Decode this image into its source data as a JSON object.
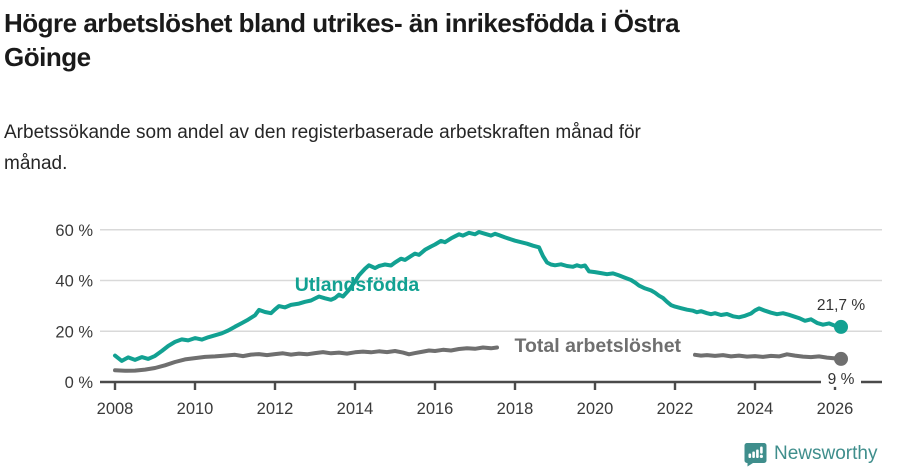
{
  "header": {
    "title_lines": [
      "Högre arbetslöshet bland utrikes- än inrikesfödda i Östra",
      "Göinge"
    ],
    "subtitle_lines": [
      "Arbetssökande som andel av den registerbaserade arbetskraften månad för",
      "månad."
    ]
  },
  "footer": {
    "brand": "Newsworthy",
    "brand_color": "#3f8e8c",
    "logo_icon": "newsworthy-speech-bubble-bar-chart-icon"
  },
  "chart_data": {
    "type": "line",
    "unit": "%",
    "grid": "horizontal",
    "x_axis": {
      "ticks": [
        2008,
        2010,
        2012,
        2014,
        2016,
        2018,
        2020,
        2022,
        2024,
        2026
      ],
      "tick_labels": [
        "2008",
        "2010",
        "2012",
        "2014",
        "2016",
        "2018",
        "2020",
        "2022",
        "2024",
        "2026"
      ],
      "range": [
        2007.6,
        2027.2
      ]
    },
    "y_axis": {
      "ticks": [
        0,
        20,
        40,
        60
      ],
      "tick_labels": [
        "0 %",
        "20 %",
        "40 %",
        "60 %"
      ],
      "range": [
        0,
        64
      ]
    },
    "series": [
      {
        "name": "Utlandsfödda",
        "color": "#12a192",
        "end_label": "21,7 %",
        "end_label_value": 21.7,
        "label_anchor": [
          2014.05,
          35.9
        ],
        "segments": [
          [
            [
              2008.0,
              10.4
            ],
            [
              2008.17,
              8.3
            ],
            [
              2008.33,
              9.7
            ],
            [
              2008.5,
              8.7
            ],
            [
              2008.67,
              9.8
            ],
            [
              2008.83,
              9.1
            ],
            [
              2009.0,
              10.3
            ],
            [
              2009.17,
              12.2
            ],
            [
              2009.33,
              14.2
            ],
            [
              2009.5,
              15.8
            ],
            [
              2009.67,
              16.8
            ],
            [
              2009.83,
              16.4
            ],
            [
              2010.0,
              17.3
            ],
            [
              2010.17,
              16.7
            ],
            [
              2010.33,
              17.6
            ],
            [
              2010.5,
              18.4
            ],
            [
              2010.67,
              19.2
            ],
            [
              2010.83,
              20.3
            ],
            [
              2011.0,
              21.8
            ],
            [
              2011.17,
              23.2
            ],
            [
              2011.33,
              24.6
            ],
            [
              2011.5,
              26.3
            ],
            [
              2011.6,
              28.4
            ],
            [
              2011.75,
              27.6
            ],
            [
              2011.9,
              27.1
            ],
            [
              2012.0,
              28.6
            ],
            [
              2012.1,
              29.9
            ],
            [
              2012.25,
              29.4
            ],
            [
              2012.4,
              30.4
            ],
            [
              2012.6,
              30.9
            ],
            [
              2012.75,
              31.6
            ],
            [
              2012.9,
              32.1
            ],
            [
              2013.1,
              33.7
            ],
            [
              2013.25,
              33.0
            ],
            [
              2013.4,
              32.4
            ],
            [
              2013.5,
              33.1
            ],
            [
              2013.6,
              34.4
            ],
            [
              2013.7,
              33.7
            ],
            [
              2013.85,
              36.3
            ],
            [
              2014.0,
              39.6
            ],
            [
              2014.1,
              42.1
            ],
            [
              2014.25,
              44.6
            ],
            [
              2014.35,
              46.0
            ],
            [
              2014.5,
              44.9
            ],
            [
              2014.6,
              45.7
            ],
            [
              2014.75,
              46.3
            ],
            [
              2014.9,
              45.9
            ],
            [
              2015.0,
              47.1
            ],
            [
              2015.15,
              48.6
            ],
            [
              2015.25,
              48.1
            ],
            [
              2015.4,
              49.6
            ],
            [
              2015.5,
              50.6
            ],
            [
              2015.6,
              50.1
            ],
            [
              2015.75,
              52.1
            ],
            [
              2015.9,
              53.4
            ],
            [
              2016.0,
              54.2
            ],
            [
              2016.15,
              55.6
            ],
            [
              2016.25,
              55.1
            ],
            [
              2016.4,
              56.6
            ],
            [
              2016.5,
              57.4
            ],
            [
              2016.6,
              58.2
            ],
            [
              2016.7,
              57.7
            ],
            [
              2016.85,
              58.8
            ],
            [
              2017.0,
              58.2
            ],
            [
              2017.1,
              59.1
            ],
            [
              2017.25,
              58.4
            ],
            [
              2017.4,
              57.7
            ],
            [
              2017.5,
              58.4
            ],
            [
              2017.6,
              57.9
            ],
            [
              2017.75,
              57.0
            ],
            [
              2017.9,
              56.2
            ],
            [
              2018.0,
              55.7
            ],
            [
              2018.15,
              55.1
            ],
            [
              2018.3,
              54.5
            ],
            [
              2018.45,
              53.7
            ],
            [
              2018.6,
              53.1
            ],
            [
              2018.7,
              49.6
            ],
            [
              2018.8,
              47.1
            ],
            [
              2018.9,
              46.3
            ],
            [
              2019.0,
              46.0
            ],
            [
              2019.15,
              46.4
            ],
            [
              2019.3,
              45.7
            ],
            [
              2019.45,
              45.4
            ],
            [
              2019.55,
              46.0
            ],
            [
              2019.65,
              45.5
            ],
            [
              2019.75,
              45.9
            ],
            [
              2019.85,
              43.6
            ],
            [
              2020.0,
              43.3
            ],
            [
              2020.15,
              42.9
            ],
            [
              2020.3,
              42.5
            ],
            [
              2020.45,
              42.8
            ],
            [
              2020.6,
              42.0
            ],
            [
              2020.75,
              41.1
            ],
            [
              2020.9,
              40.2
            ],
            [
              2021.0,
              39.2
            ],
            [
              2021.1,
              38.0
            ],
            [
              2021.25,
              36.9
            ],
            [
              2021.4,
              36.1
            ],
            [
              2021.5,
              35.2
            ],
            [
              2021.6,
              34.0
            ],
            [
              2021.7,
              33.1
            ],
            [
              2021.8,
              31.6
            ],
            [
              2021.9,
              30.3
            ],
            [
              2022.0,
              29.7
            ],
            [
              2022.15,
              29.1
            ],
            [
              2022.3,
              28.5
            ],
            [
              2022.45,
              28.1
            ],
            [
              2022.55,
              27.5
            ],
            [
              2022.65,
              27.9
            ],
            [
              2022.8,
              27.1
            ],
            [
              2022.9,
              26.7
            ],
            [
              2023.0,
              27.1
            ],
            [
              2023.15,
              26.4
            ],
            [
              2023.3,
              26.8
            ],
            [
              2023.45,
              25.9
            ],
            [
              2023.6,
              25.5
            ],
            [
              2023.75,
              26.1
            ],
            [
              2023.9,
              27.0
            ],
            [
              2024.0,
              28.2
            ],
            [
              2024.1,
              29.0
            ],
            [
              2024.25,
              28.1
            ],
            [
              2024.4,
              27.3
            ],
            [
              2024.55,
              26.7
            ],
            [
              2024.7,
              27.1
            ],
            [
              2024.85,
              26.5
            ],
            [
              2025.0,
              25.7
            ],
            [
              2025.1,
              25.2
            ],
            [
              2025.25,
              24.1
            ],
            [
              2025.4,
              24.7
            ],
            [
              2025.55,
              23.3
            ],
            [
              2025.7,
              22.6
            ],
            [
              2025.85,
              23.1
            ],
            [
              2026.0,
              22.2
            ],
            [
              2026.15,
              21.7
            ]
          ]
        ]
      },
      {
        "name": "Total arbetslöshet",
        "color": "#6f6f6f",
        "end_label": "9 %",
        "end_label_value": 9.0,
        "label_anchor": [
          2020.07,
          11.8
        ],
        "segments": [
          [
            [
              2008.0,
              4.6
            ],
            [
              2008.25,
              4.4
            ],
            [
              2008.5,
              4.5
            ],
            [
              2008.75,
              4.9
            ],
            [
              2009.0,
              5.5
            ],
            [
              2009.25,
              6.6
            ],
            [
              2009.5,
              7.9
            ],
            [
              2009.75,
              8.9
            ],
            [
              2010.0,
              9.4
            ],
            [
              2010.25,
              9.9
            ],
            [
              2010.5,
              10.1
            ],
            [
              2010.75,
              10.4
            ],
            [
              2011.0,
              10.7
            ],
            [
              2011.2,
              10.2
            ],
            [
              2011.4,
              10.8
            ],
            [
              2011.6,
              11.0
            ],
            [
              2011.8,
              10.6
            ],
            [
              2012.0,
              11.0
            ],
            [
              2012.2,
              11.3
            ],
            [
              2012.4,
              10.8
            ],
            [
              2012.6,
              11.2
            ],
            [
              2012.8,
              10.9
            ],
            [
              2013.0,
              11.4
            ],
            [
              2013.2,
              11.8
            ],
            [
              2013.4,
              11.3
            ],
            [
              2013.6,
              11.6
            ],
            [
              2013.8,
              11.2
            ],
            [
              2014.0,
              11.7
            ],
            [
              2014.2,
              12.0
            ],
            [
              2014.4,
              11.7
            ],
            [
              2014.6,
              12.1
            ],
            [
              2014.8,
              11.8
            ],
            [
              2015.0,
              12.2
            ],
            [
              2015.2,
              11.6
            ],
            [
              2015.35,
              10.9
            ],
            [
              2015.5,
              11.4
            ],
            [
              2015.7,
              12.0
            ],
            [
              2015.85,
              12.4
            ],
            [
              2016.0,
              12.2
            ],
            [
              2016.2,
              12.7
            ],
            [
              2016.4,
              12.4
            ],
            [
              2016.6,
              13.0
            ],
            [
              2016.8,
              13.3
            ],
            [
              2017.0,
              13.1
            ],
            [
              2017.2,
              13.6
            ],
            [
              2017.4,
              13.3
            ],
            [
              2017.55,
              13.6
            ]
          ],
          [
            [
              2022.5,
              10.7
            ],
            [
              2022.65,
              10.4
            ],
            [
              2022.8,
              10.6
            ],
            [
              2023.0,
              10.3
            ],
            [
              2023.2,
              10.6
            ],
            [
              2023.4,
              10.1
            ],
            [
              2023.6,
              10.4
            ],
            [
              2023.8,
              10.0
            ],
            [
              2024.0,
              10.2
            ],
            [
              2024.2,
              9.9
            ],
            [
              2024.4,
              10.3
            ],
            [
              2024.6,
              10.1
            ],
            [
              2024.8,
              10.9
            ],
            [
              2025.0,
              10.4
            ],
            [
              2025.2,
              10.0
            ],
            [
              2025.4,
              9.8
            ],
            [
              2025.6,
              10.1
            ],
            [
              2025.8,
              9.6
            ],
            [
              2026.0,
              9.3
            ],
            [
              2026.15,
              9.1
            ]
          ]
        ]
      }
    ]
  }
}
